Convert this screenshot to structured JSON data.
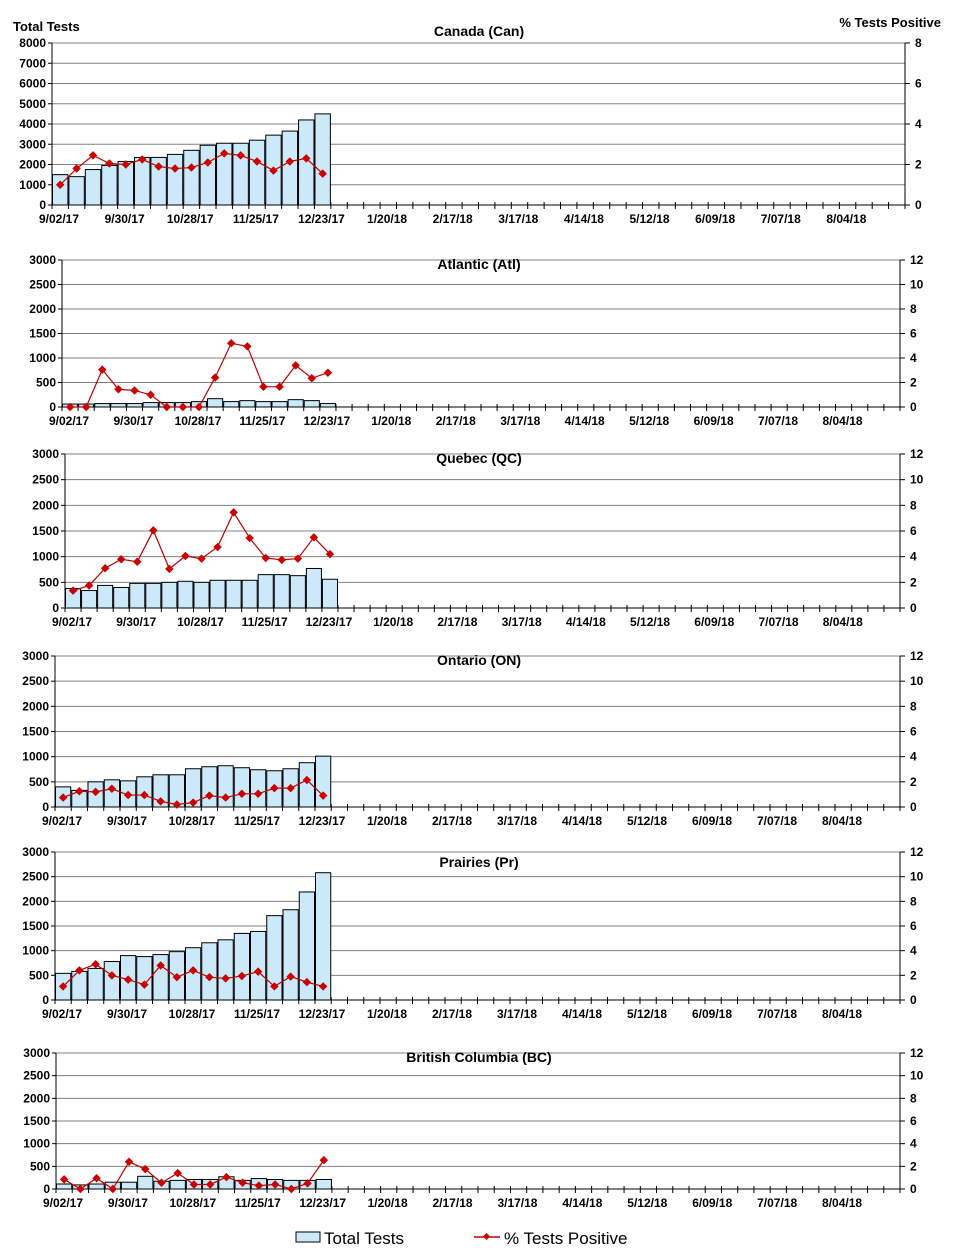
{
  "chart_data": [
    {
      "type": "bar+line",
      "title": "Canada (Can)",
      "ylabel": "Total Tests",
      "y2label": "% Tests Positive",
      "ylim": [
        0,
        8000
      ],
      "yticks": [
        0,
        1000,
        2000,
        3000,
        4000,
        5000,
        6000,
        7000,
        8000
      ],
      "y2lim": [
        0,
        8
      ],
      "y2ticks": [
        0,
        2,
        4,
        6,
        8
      ],
      "total_tests": [
        1500,
        1400,
        1750,
        1950,
        2150,
        2350,
        2350,
        2500,
        2700,
        2950,
        3050,
        3050,
        3200,
        3450,
        3650,
        4200,
        4500
      ],
      "pct_positive": [
        1.0,
        1.8,
        2.45,
        2.05,
        2.0,
        2.25,
        1.9,
        1.8,
        1.85,
        2.1,
        2.55,
        2.45,
        2.15,
        1.7,
        2.15,
        2.3,
        1.55
      ]
    },
    {
      "type": "bar+line",
      "title": "Atlantic (Atl)",
      "ylim": [
        0,
        3000
      ],
      "yticks": [
        0,
        500,
        1000,
        1500,
        2000,
        2500,
        3000
      ],
      "y2lim": [
        0,
        12
      ],
      "y2ticks": [
        0,
        2,
        4,
        6,
        8,
        10,
        12
      ],
      "total_tests": [
        60,
        60,
        70,
        70,
        70,
        90,
        90,
        90,
        110,
        170,
        110,
        130,
        110,
        110,
        150,
        130,
        70
      ],
      "pct_positive": [
        0,
        0,
        3.05,
        1.45,
        1.35,
        1.0,
        0,
        0,
        0,
        2.4,
        5.2,
        4.95,
        1.65,
        1.65,
        3.4,
        2.35,
        2.8
      ]
    },
    {
      "type": "bar+line",
      "title": "Quebec (QC)",
      "ylim": [
        0,
        3000
      ],
      "yticks": [
        0,
        500,
        1000,
        1500,
        2000,
        2500,
        3000
      ],
      "y2lim": [
        0,
        12
      ],
      "y2ticks": [
        0,
        2,
        4,
        6,
        8,
        10,
        12
      ],
      "total_tests": [
        380,
        340,
        440,
        400,
        480,
        480,
        500,
        520,
        500,
        540,
        540,
        540,
        650,
        650,
        630,
        770,
        560
      ],
      "pct_positive": [
        1.35,
        1.75,
        3.1,
        3.8,
        3.6,
        6.05,
        3.05,
        4.05,
        3.85,
        4.75,
        7.45,
        5.45,
        3.9,
        3.75,
        3.85,
        5.5,
        4.2
      ]
    },
    {
      "type": "bar+line",
      "title": "Ontario (ON)",
      "ylim": [
        0,
        3000
      ],
      "yticks": [
        0,
        500,
        1000,
        1500,
        2000,
        2500,
        3000
      ],
      "y2lim": [
        0,
        12
      ],
      "y2ticks": [
        0,
        2,
        4,
        6,
        8,
        10,
        12
      ],
      "total_tests": [
        400,
        330,
        500,
        540,
        520,
        600,
        640,
        640,
        760,
        800,
        820,
        780,
        740,
        720,
        760,
        880,
        1010
      ],
      "pct_positive": [
        0.75,
        1.25,
        1.2,
        1.45,
        0.95,
        0.95,
        0.45,
        0.2,
        0.35,
        0.9,
        0.75,
        1.05,
        1.05,
        1.5,
        1.5,
        2.15,
        0.9
      ]
    },
    {
      "type": "bar+line",
      "title": "Prairies (Pr)",
      "ylim": [
        0,
        3000
      ],
      "yticks": [
        0,
        500,
        1000,
        1500,
        2000,
        2500,
        3000
      ],
      "y2lim": [
        0,
        12
      ],
      "y2ticks": [
        0,
        2,
        4,
        6,
        8,
        10,
        12
      ],
      "total_tests": [
        540,
        580,
        640,
        780,
        900,
        880,
        920,
        980,
        1060,
        1160,
        1220,
        1350,
        1390,
        1710,
        1830,
        2190,
        2580
      ],
      "pct_positive": [
        1.1,
        2.4,
        2.9,
        2.0,
        1.65,
        1.25,
        2.8,
        1.85,
        2.4,
        1.85,
        1.75,
        1.95,
        2.3,
        1.1,
        1.9,
        1.45,
        1.1
      ]
    },
    {
      "type": "bar+line",
      "title": "British Columbia (BC)",
      "ylim": [
        0,
        3000
      ],
      "yticks": [
        0,
        500,
        1000,
        1500,
        2000,
        2500,
        3000
      ],
      "y2lim": [
        0,
        12
      ],
      "y2ticks": [
        0,
        2,
        4,
        6,
        8,
        10,
        12
      ],
      "total_tests": [
        110,
        90,
        110,
        150,
        150,
        280,
        170,
        190,
        210,
        210,
        270,
        190,
        230,
        210,
        190,
        190,
        210
      ],
      "pct_positive": [
        0.85,
        0,
        0.95,
        0,
        2.4,
        1.75,
        0.55,
        1.4,
        0.4,
        0.4,
        1.05,
        0.55,
        0.3,
        0.4,
        0,
        0.5,
        2.55
      ]
    }
  ],
  "x_categories_count": 52,
  "x_tick_labels": [
    "9/02/17",
    "9/30/17",
    "10/28/17",
    "11/25/17",
    "12/23/17",
    "1/20/18",
    "2/17/18",
    "3/17/18",
    "4/14/18",
    "5/12/18",
    "6/09/18",
    "7/07/18",
    "8/04/18"
  ],
  "legend": {
    "bars": "Total Tests",
    "line": "% Tests Positive",
    "position": "bottom"
  },
  "colors": {
    "bar_fill": "#cce9fa",
    "bar_stroke": "#000000",
    "line": "#c00000",
    "marker": "#cc0000",
    "grid": "#808080"
  }
}
